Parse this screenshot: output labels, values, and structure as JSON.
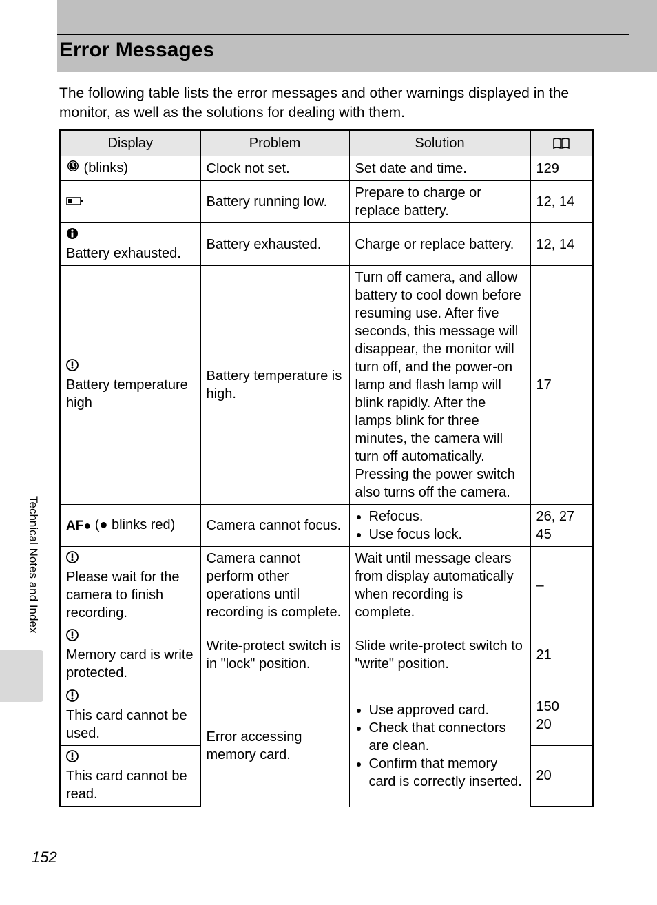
{
  "page": {
    "title": "Error Messages",
    "intro": "The following table lists the error messages and other warnings displayed in the monitor, as well as the solutions for dealing with them.",
    "side_label": "Technical Notes and Index",
    "page_number": "152"
  },
  "table": {
    "headers": {
      "display": "Display",
      "problem": "Problem",
      "solution": "Solution"
    },
    "rows": [
      {
        "display_icon": "clock",
        "display_text": " (blinks)",
        "problem": "Clock not set.",
        "solution_type": "text",
        "solution": "Set date and time.",
        "ref": "129"
      },
      {
        "display_icon": "battery-low",
        "display_text": "",
        "problem": "Battery running low.",
        "solution_type": "text",
        "solution": "Prepare to charge or replace battery.",
        "ref": "12, 14"
      },
      {
        "display_icon": "info",
        "display_text": "Battery exhausted.",
        "problem": "Battery exhausted.",
        "solution_type": "text",
        "solution": "Charge or replace battery.",
        "ref": "12, 14"
      },
      {
        "display_icon": "warn",
        "display_text": "Battery temperature high",
        "problem": "Battery temperature is high.",
        "solution_type": "text",
        "solution": "Turn off camera, and allow battery to cool down before resuming use. After five seconds, this message will disappear, the monitor will turn off, and the power-on lamp and flash lamp will blink rapidly. After the lamps blink for three minutes, the camera will turn off automatically. Pressing the power switch also turns off the camera.",
        "ref": "17"
      },
      {
        "display_icon": "af",
        "display_text": " (● blinks red)",
        "problem": "Camera cannot focus.",
        "solution_type": "list",
        "solution_items": [
          "Refocus.",
          "Use focus lock."
        ],
        "ref": "26, 27\n45"
      },
      {
        "display_icon": "warn",
        "display_text": "Please wait for the camera to finish recording.",
        "problem": "Camera cannot perform other operations until recording is complete.",
        "solution_type": "text",
        "solution": "Wait until message clears from display automatically when recording is complete.",
        "ref": "–"
      },
      {
        "display_icon": "warn",
        "display_text": "Memory card is write protected.",
        "problem": "Write-protect switch is in \"lock\" position.",
        "solution_type": "text",
        "solution": "Slide write-protect switch to \"write\" position.",
        "ref": "21"
      }
    ],
    "merged": {
      "row8a": {
        "display_icon": "warn",
        "display_text": "This card cannot be used.",
        "ref": "150\n20"
      },
      "row8b": {
        "display_icon": "warn",
        "display_text": "This card cannot be read.",
        "ref": "20"
      },
      "problem": "Error accessing memory card.",
      "solution_items": [
        "Use approved card.",
        "Check that connectors are clean.",
        "Confirm that memory card is correctly inserted."
      ]
    }
  },
  "style": {
    "title_fontsize": 30,
    "body_fontsize": 20,
    "header_bg": "#bfbfbf",
    "thead_bg": "#e6e6e6",
    "page_bg": "#ffffff"
  }
}
